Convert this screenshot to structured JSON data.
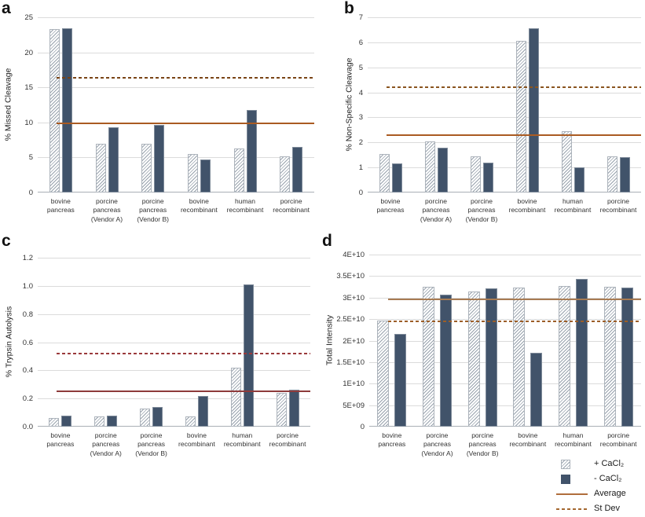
{
  "colors": {
    "plus_cacl2_fill": "#ffffff",
    "plus_cacl2_stripe": "#98A2AD",
    "minus_cacl2_fill": "#41536A",
    "gridline": "#DBDBDB",
    "axis": "#A9AFB6"
  },
  "legend": {
    "items": [
      {
        "swatch": "hatch",
        "label": "+ CaCl₂"
      },
      {
        "swatch": "dark",
        "label": "- CaCl₂"
      },
      {
        "swatch": "line-solid",
        "label": "Average"
      },
      {
        "swatch": "line-dashed",
        "label": "St Dev"
      }
    ]
  },
  "chart_data": [
    {
      "id": "a",
      "type": "bar",
      "panel_letter": "a",
      "title": "",
      "xlabel": "",
      "ylabel": "% Missed Cleavage",
      "ylim": [
        0,
        25
      ],
      "grid": true,
      "ytick_values": [
        0,
        5,
        10,
        15,
        20,
        25
      ],
      "ytick_labels": [
        "0",
        "5",
        "10",
        "15",
        "20",
        "25"
      ],
      "categories": [
        "bovine pancreas",
        "porcine pancreas (Vendor A)",
        "porcine pancreas (Vendor B)",
        "bovine recombinant",
        "human recombinant",
        "porcine recombinant"
      ],
      "category_lines": [
        [
          "bovine",
          "pancreas"
        ],
        [
          "porcine",
          "pancreas",
          "(Vendor A)"
        ],
        [
          "porcine",
          "pancreas",
          "(Vendor B)"
        ],
        [
          "bovine",
          "recombinant"
        ],
        [
          "human",
          "recombinant"
        ],
        [
          "porcine",
          "recombinant"
        ]
      ],
      "series": [
        {
          "name": "+ CaCl₂",
          "values": [
            23.3,
            7.0,
            6.9,
            5.5,
            6.3,
            5.2
          ]
        },
        {
          "name": "- CaCl₂",
          "values": [
            23.4,
            9.3,
            9.6,
            4.7,
            11.8,
            6.5
          ]
        }
      ],
      "average": 9.9,
      "st_dev": 16.4,
      "average_color": "#AA5B22",
      "st_dev_color": "#7A4416",
      "legend_position": "shared bottom-right"
    },
    {
      "id": "b",
      "type": "bar",
      "panel_letter": "b",
      "title": "",
      "xlabel": "",
      "ylabel": "% Non-Specific Cleavage",
      "ylim": [
        0,
        7
      ],
      "grid": true,
      "ytick_values": [
        0,
        1,
        2,
        3,
        4,
        5,
        6,
        7
      ],
      "ytick_labels": [
        "0",
        "1",
        "2",
        "3",
        "4",
        "5",
        "6",
        "7"
      ],
      "categories": [
        "bovine pancreas",
        "porcine pancreas (Vendor A)",
        "porcine pancreas (Vendor B)",
        "bovine recombinant",
        "human recombinant",
        "porcine recombinant"
      ],
      "category_lines": [
        [
          "bovine",
          "pancreas"
        ],
        [
          "porcine",
          "pancreas",
          "(Vendor A)"
        ],
        [
          "porcine",
          "pancreas",
          "(Vendor B)"
        ],
        [
          "bovine",
          "recombinant"
        ],
        [
          "human",
          "recombinant"
        ],
        [
          "porcine",
          "recombinant"
        ]
      ],
      "series": [
        {
          "name": "+ CaCl₂",
          "values": [
            1.55,
            2.05,
            1.45,
            6.05,
            2.45,
            1.45
          ]
        },
        {
          "name": "- CaCl₂",
          "values": [
            1.15,
            1.8,
            1.2,
            6.55,
            1.0,
            1.4
          ]
        }
      ],
      "average": 2.3,
      "st_dev": 4.2,
      "average_color": "#AA5B22",
      "st_dev_color": "#8A5520",
      "legend_position": "shared bottom-right"
    },
    {
      "id": "c",
      "type": "bar",
      "panel_letter": "c",
      "title": "",
      "xlabel": "",
      "ylabel": "% Trypsin Autolysis",
      "ylim": [
        0,
        1.2
      ],
      "grid": true,
      "ytick_values": [
        0,
        0.2,
        0.4,
        0.6,
        0.8,
        1.0,
        1.2
      ],
      "ytick_labels": [
        "0.0",
        "0.2",
        "0.4",
        "0.6",
        "0.8",
        "1.0",
        "1.2"
      ],
      "categories": [
        "bovine pancreas",
        "porcine pancreas (Vendor A)",
        "porcine pancreas (Vendor B)",
        "bovine recombinant",
        "human recombinant",
        "porcine recombinant"
      ],
      "category_lines": [
        [
          "bovine",
          "pancreas"
        ],
        [
          "porcine",
          "pancreas",
          "(Vendor A)"
        ],
        [
          "porcine",
          "pancreas",
          "(Vendor B)"
        ],
        [
          "bovine",
          "recombinant"
        ],
        [
          "human",
          "recombinant"
        ],
        [
          "porcine",
          "recombinant"
        ]
      ],
      "series": [
        {
          "name": "+ CaCl₂",
          "values": [
            0.06,
            0.07,
            0.13,
            0.07,
            0.42,
            0.24
          ]
        },
        {
          "name": "- CaCl₂",
          "values": [
            0.08,
            0.08,
            0.14,
            0.22,
            1.01,
            0.26
          ]
        }
      ],
      "average": 0.25,
      "st_dev": 0.52,
      "average_color": "#8E3B3B",
      "st_dev_color": "#9A3A3C",
      "legend_position": "shared bottom-right"
    },
    {
      "id": "d",
      "type": "bar",
      "panel_letter": "d",
      "title": "",
      "xlabel": "",
      "ylabel": "Total Intensity",
      "ylim": [
        0,
        40000000000.0
      ],
      "grid": true,
      "ytick_values": [
        0,
        5000000000.0,
        10000000000.0,
        15000000000.0,
        20000000000.0,
        25000000000.0,
        30000000000.0,
        35000000000.0,
        40000000000.0
      ],
      "ytick_labels": [
        "0",
        "5E+09",
        "1E+10",
        "1.5E+10",
        "2E+10",
        "2.5E+10",
        "3E+10",
        "3.5E+10",
        "4E+10"
      ],
      "categories": [
        "bovine pancreas",
        "porcine pancreas (Vendor A)",
        "porcine pancreas (Vendor B)",
        "bovine recombinant",
        "human recombinant",
        "porcine recombinant"
      ],
      "category_lines": [
        [
          "bovine",
          "pancreas"
        ],
        [
          "porcine",
          "pancreas",
          "(Vendor A)"
        ],
        [
          "porcine",
          "pancreas",
          "(Vendor B)"
        ],
        [
          "bovine",
          "recombinant"
        ],
        [
          "human",
          "recombinant"
        ],
        [
          "porcine",
          "recombinant"
        ]
      ],
      "series": [
        {
          "name": "+ CaCl₂",
          "values": [
            24700000000.0,
            32600000000.0,
            31500000000.0,
            32400000000.0,
            32700000000.0,
            32500000000.0
          ]
        },
        {
          "name": "- CaCl₂",
          "values": [
            21500000000.0,
            30700000000.0,
            32100000000.0,
            17200000000.0,
            34400000000.0,
            32400000000.0
          ]
        }
      ],
      "average": 29500000000.0,
      "st_dev": 24400000000.0,
      "average_color": "#A87B52",
      "st_dev_color": "#9C5E28",
      "legend_position": "shared bottom-right"
    }
  ]
}
